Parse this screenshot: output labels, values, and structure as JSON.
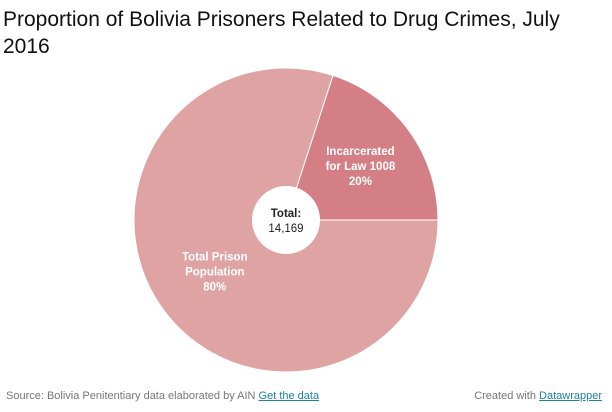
{
  "title": "Proportion of Bolivia Prisoners Related to Drug Crimes, July 2016",
  "chart_data": {
    "type": "pie",
    "variant": "donut",
    "slices": [
      {
        "label_lines": [
          "Incarcerated",
          "for Law 1008"
        ],
        "percent_text": "20%",
        "value": 20,
        "color": "#d47f86"
      },
      {
        "label_lines": [
          "Total Prison",
          "Population"
        ],
        "percent_text": "80%",
        "value": 80,
        "color": "#dfa3a4"
      }
    ],
    "center": {
      "title": "Total:",
      "value": "14,169"
    }
  },
  "footer": {
    "source_text": "Source: Bolivia Penitentiary data elaborated by AIN ",
    "source_link": "Get the data",
    "credit_text": "Created with ",
    "credit_link": "Datawrapper"
  }
}
